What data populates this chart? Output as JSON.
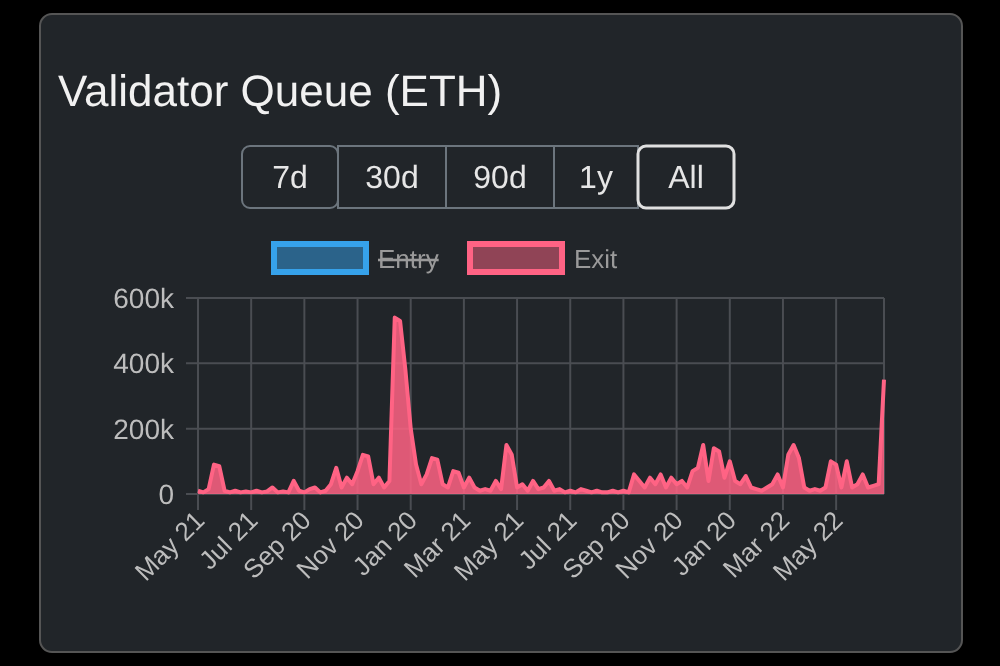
{
  "chart_data": {
    "type": "area",
    "title": "Validator Queue (ETH)",
    "annotations": [
      "7d",
      "30d",
      "90d",
      "1y",
      "All"
    ],
    "categories": [
      "May 21",
      null,
      null,
      null,
      null,
      null,
      null,
      null,
      null,
      null,
      "Jul 21",
      null,
      null,
      null,
      null,
      null,
      null,
      null,
      null,
      null,
      "Sep 20",
      null,
      null,
      null,
      null,
      null,
      null,
      null,
      null,
      null,
      "Nov 20",
      null,
      null,
      null,
      null,
      null,
      null,
      null,
      null,
      null,
      "Jan 20",
      null,
      null,
      null,
      null,
      null,
      null,
      null,
      null,
      null,
      "Mar 21",
      null,
      null,
      null,
      null,
      null,
      null,
      null,
      null,
      null,
      "May 21",
      null,
      null,
      null,
      null,
      null,
      null,
      null,
      null,
      null,
      "Jul 21",
      null,
      null,
      null,
      null,
      null,
      null,
      null,
      null,
      null,
      "Sep 20",
      null,
      null,
      null,
      null,
      null,
      null,
      null,
      null,
      null,
      "Nov 20",
      null,
      null,
      null,
      null,
      null,
      null,
      null,
      null,
      null,
      "Jan 20",
      null,
      null,
      null,
      null,
      null,
      null,
      null,
      null,
      null,
      "Mar 22",
      null,
      null,
      null,
      null,
      null,
      null,
      null,
      null,
      null,
      "May 22",
      null,
      null,
      null,
      null,
      null,
      null,
      null,
      null,
      null
    ],
    "series": [
      {
        "name": "Entry",
        "color": "#36a2eb",
        "values": [
          null,
          null,
          null,
          null,
          null,
          null,
          null,
          null,
          null,
          null,
          null,
          null,
          null,
          null,
          null,
          null,
          null,
          null,
          null,
          null,
          null,
          null,
          null,
          null,
          null,
          null,
          null,
          null,
          null,
          null,
          null,
          null,
          null,
          null,
          null,
          null,
          null,
          null,
          null,
          null,
          null,
          null,
          null,
          null,
          null,
          null,
          null,
          null,
          null,
          null,
          null,
          null,
          null,
          null,
          null,
          null,
          null,
          null,
          null,
          null,
          null,
          null,
          null,
          null,
          null,
          null,
          null,
          null,
          null,
          null,
          null,
          null,
          null,
          null,
          null,
          null,
          null,
          null,
          null,
          null,
          null,
          null,
          null,
          null,
          null,
          null,
          null,
          null,
          null,
          null,
          null,
          null,
          null,
          null,
          null,
          null,
          null,
          null,
          null,
          null,
          null,
          null,
          null,
          null,
          null,
          null,
          null,
          null,
          null,
          null,
          null,
          null,
          null,
          null,
          null,
          null,
          null,
          null,
          null,
          null,
          null,
          null,
          null,
          null,
          null,
          null,
          null,
          null,
          null,
          null
        ]
      },
      {
        "name": "Exit",
        "color": "#ff6384",
        "values": [
          10000,
          5000,
          15000,
          90000,
          85000,
          10000,
          5000,
          10000,
          5000,
          8000,
          5000,
          10000,
          5000,
          8000,
          20000,
          5000,
          8000,
          5000,
          40000,
          10000,
          5000,
          15000,
          20000,
          5000,
          10000,
          30000,
          80000,
          20000,
          50000,
          30000,
          70000,
          120000,
          115000,
          30000,
          50000,
          20000,
          40000,
          540000,
          530000,
          380000,
          200000,
          90000,
          30000,
          60000,
          110000,
          105000,
          30000,
          20000,
          70000,
          65000,
          20000,
          50000,
          20000,
          10000,
          15000,
          10000,
          40000,
          15000,
          150000,
          120000,
          20000,
          30000,
          10000,
          40000,
          15000,
          20000,
          40000,
          10000,
          15000,
          5000,
          10000,
          5000,
          15000,
          10000,
          5000,
          10000,
          5000,
          5000,
          10000,
          5000,
          10000,
          5000,
          60000,
          40000,
          20000,
          50000,
          30000,
          60000,
          20000,
          50000,
          30000,
          40000,
          20000,
          70000,
          80000,
          150000,
          40000,
          140000,
          130000,
          50000,
          100000,
          40000,
          30000,
          55000,
          20000,
          15000,
          10000,
          20000,
          30000,
          60000,
          20000,
          120000,
          150000,
          110000,
          20000,
          10000,
          15000,
          10000,
          20000,
          100000,
          90000,
          20000,
          100000,
          20000,
          30000,
          60000,
          20000,
          25000,
          30000,
          350000
        ]
      }
    ],
    "ylim": [
      0,
      600000
    ],
    "yticks": [
      {
        "value": 0,
        "label": "0"
      },
      {
        "value": 200000,
        "label": "200k"
      },
      {
        "value": 400000,
        "label": "400k"
      },
      {
        "value": 600000,
        "label": "600k"
      }
    ],
    "grid": true,
    "legend": "top"
  }
}
